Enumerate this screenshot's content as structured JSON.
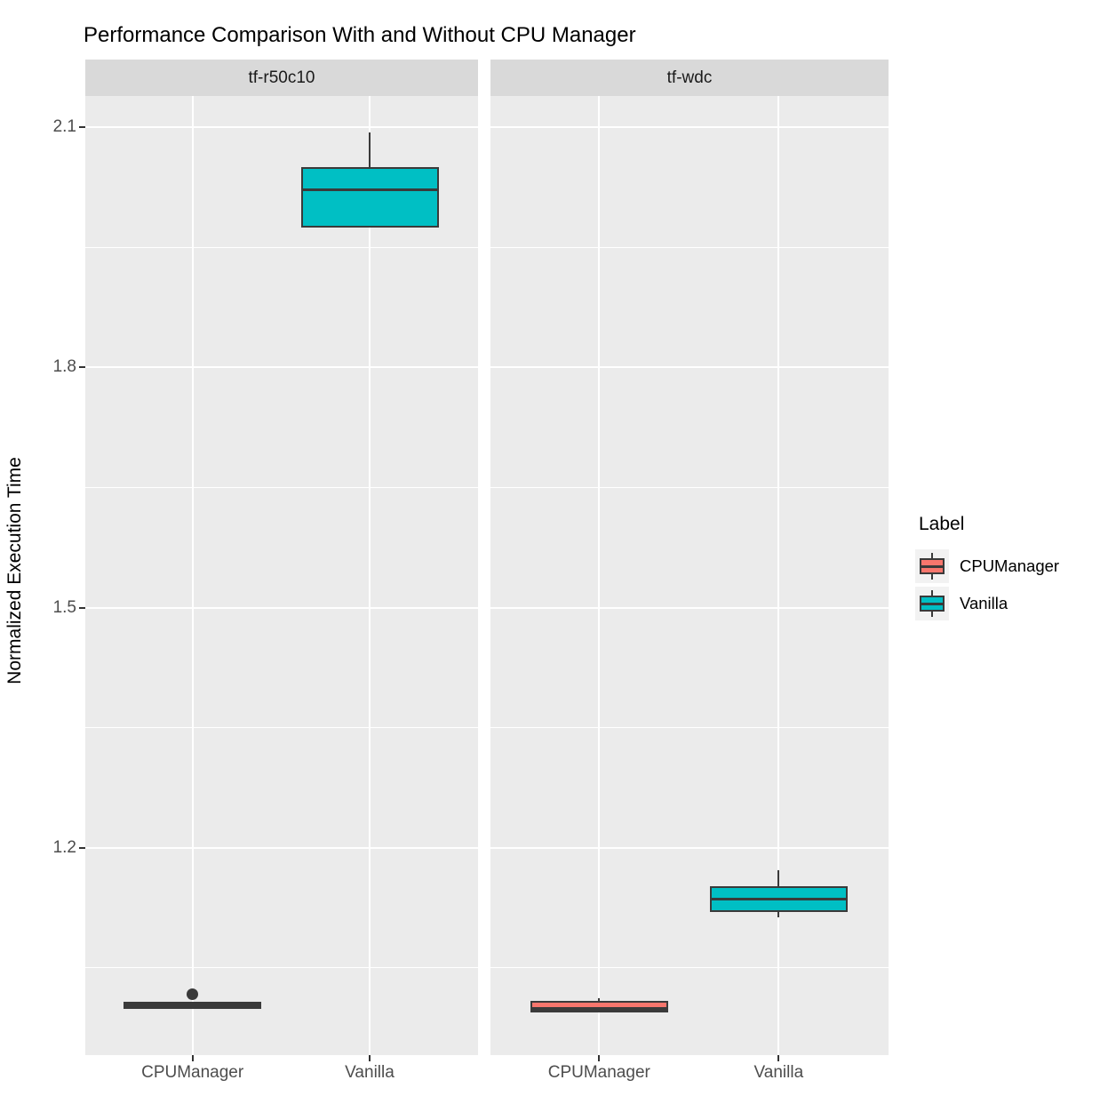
{
  "title": "Performance Comparison With and Without CPU Manager",
  "y_axis": {
    "label": "Normalized Execution Time"
  },
  "legend": {
    "title": "Label",
    "entries": [
      {
        "label": "CPUManager",
        "color": "#F8766D"
      },
      {
        "label": "Vanilla",
        "color": "#00BFC4"
      }
    ]
  },
  "chart_data": {
    "type": "boxplot",
    "title": "Performance Comparison With and Without CPU Manager",
    "xlabel": "",
    "ylabel": "Normalized Execution Time",
    "ylim": [
      0.941,
      2.139
    ],
    "yticks": [
      2.1,
      1.8,
      1.5,
      1.2
    ],
    "yticks_minor": [
      1.95,
      1.65,
      1.35,
      1.05
    ],
    "grid": true,
    "legend_position": "right",
    "legend_title": "Label",
    "panel_bg": "#EBEBEB",
    "strip_bg": "#D9D9D9",
    "box_border_color": "#3A3A3A",
    "facets": [
      {
        "name": "tf-r50c10",
        "categories": [
          "CPUManager",
          "Vanilla"
        ],
        "boxes": [
          {
            "group": "CPUManager",
            "color": "#F8766D",
            "whisker_low": 0.999,
            "q1": 1.001,
            "median": 1.003,
            "q3": 1.005,
            "whisker_high": 1.007,
            "outliers": [
              1.017
            ]
          },
          {
            "group": "Vanilla",
            "color": "#00BFC4",
            "whisker_low": 1.977,
            "q1": 1.977,
            "median": 2.022,
            "q3": 2.048,
            "whisker_high": 2.093,
            "outliers": []
          }
        ]
      },
      {
        "name": "tf-wdc",
        "categories": [
          "CPUManager",
          "Vanilla"
        ],
        "boxes": [
          {
            "group": "CPUManager",
            "color": "#F8766D",
            "whisker_low": 0.995,
            "q1": 0.996,
            "median": 0.999,
            "q3": 1.007,
            "whisker_high": 1.012,
            "outliers": []
          },
          {
            "group": "Vanilla",
            "color": "#00BFC4",
            "whisker_low": 1.113,
            "q1": 1.122,
            "median": 1.136,
            "q3": 1.15,
            "whisker_high": 1.172,
            "outliers": []
          }
        ]
      }
    ]
  }
}
